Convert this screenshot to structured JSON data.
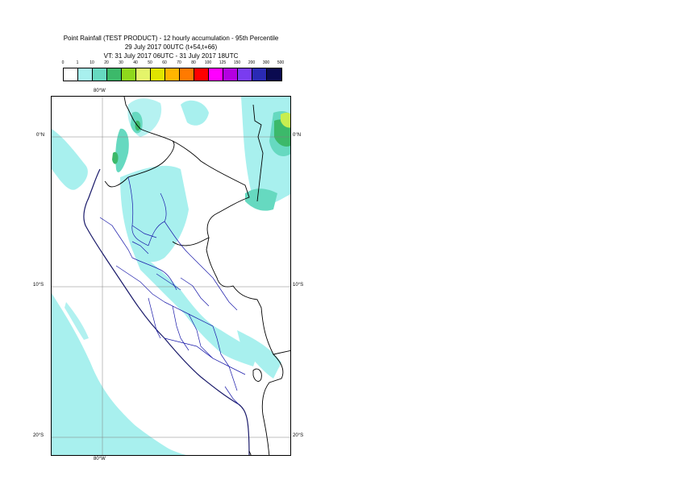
{
  "header": {
    "title_line1": "Point Rainfall (TEST PRODUCT) - 12 hourly accumulation - 95th Percentile",
    "title_line2": "29 July 2017 00UTC (t+54,t+66)",
    "title_line3": "VT: 31 July 2017 06UTC - 31 July 2017 18UTC"
  },
  "legend": {
    "thresholds": [
      "0",
      "1",
      "10",
      "20",
      "30",
      "40",
      "50",
      "60",
      "70",
      "80",
      "100",
      "125",
      "150",
      "200",
      "300",
      "500"
    ],
    "colors": [
      "#ffffff",
      "#a8f0ee",
      "#66d9c0",
      "#3cb96a",
      "#8fd81c",
      "#e4f46a",
      "#e0e400",
      "#ffb400",
      "#ff7a00",
      "#ff0000",
      "#ff00ff",
      "#b400e0",
      "#7a3cf0",
      "#2a2ab4",
      "#0a0a50"
    ]
  },
  "map": {
    "lat_labels": [
      "0°N",
      "10°S",
      "20°S"
    ],
    "lon_label_top": "80°W",
    "lon_label_bottom": "80°W",
    "colors": {
      "ocean_rain": "#a8f0ee",
      "medium": "#66d9c0",
      "green": "#3cb96a",
      "yellow_green": "#c8ee50",
      "national_border": "#000000",
      "regional_border": "#1a1aaa",
      "coast": "#1a1a6a",
      "grid": "#808080"
    }
  }
}
